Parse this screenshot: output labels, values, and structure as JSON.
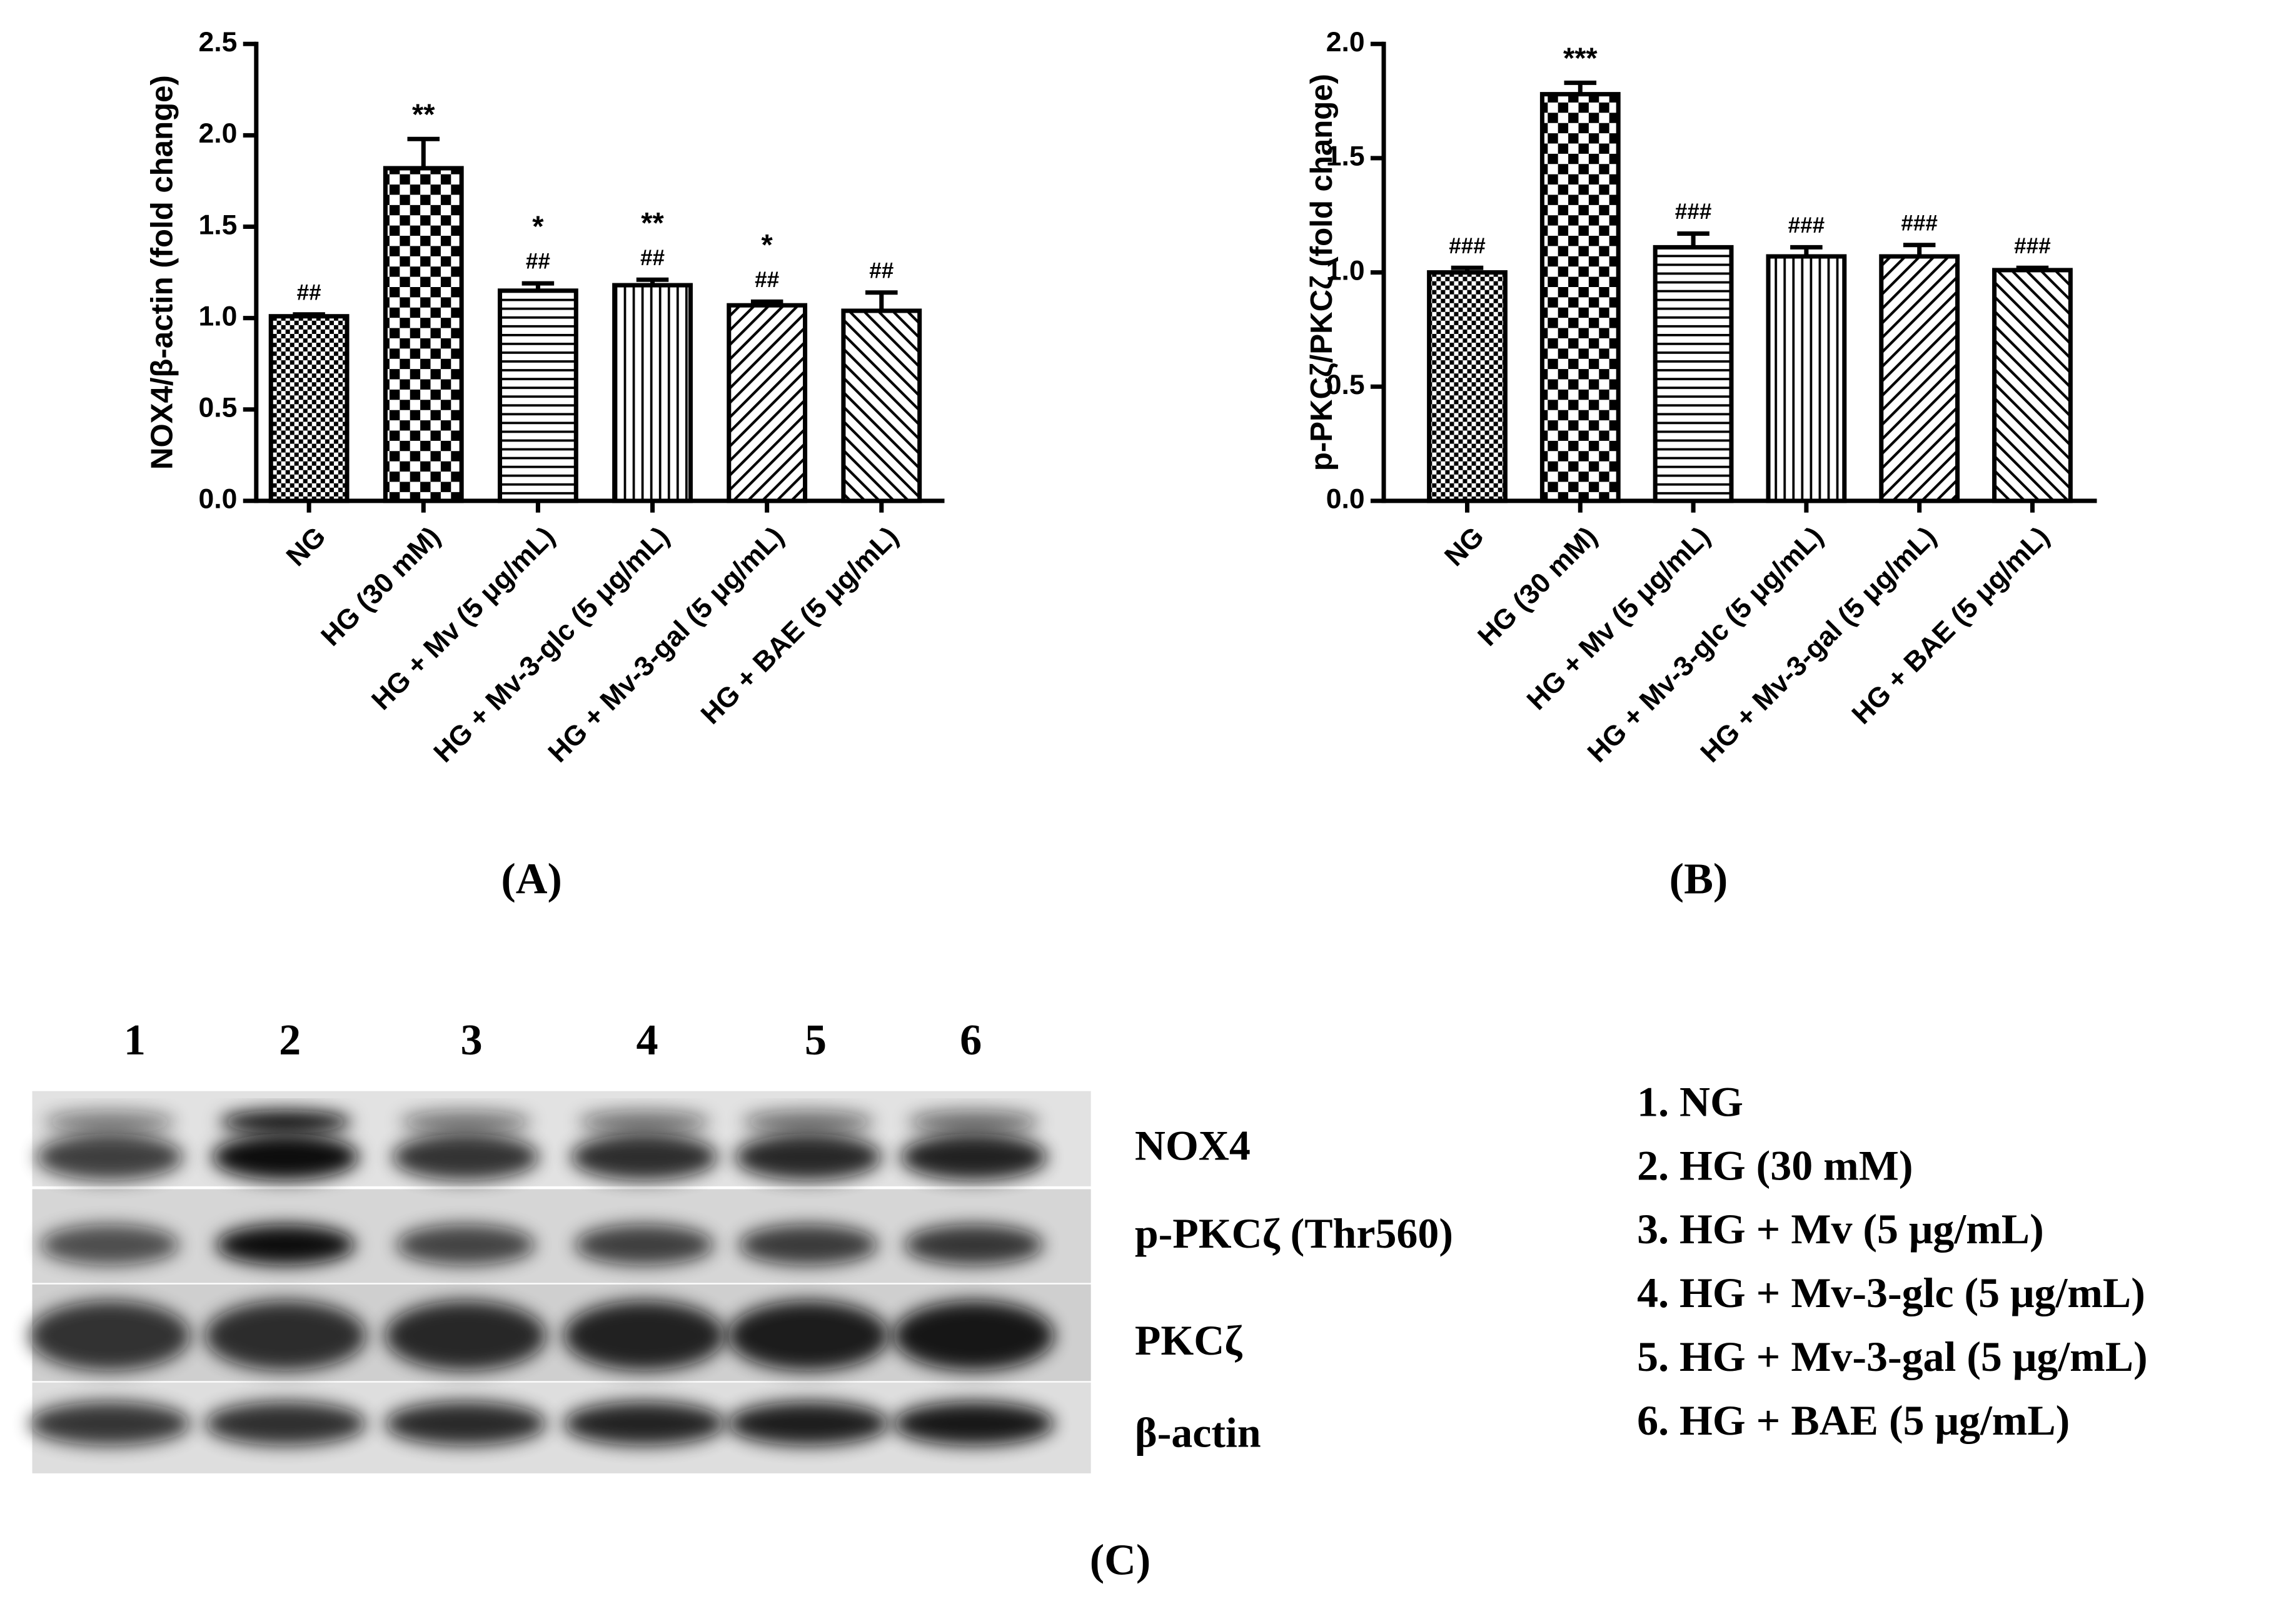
{
  "chart_data": [
    {
      "type": "bar",
      "y_label": "NOX4/β-actin (fold change)",
      "panel_label": "(A)",
      "categories": [
        "NG",
        "HG (30 mM)",
        "HG + Mv (5 μg/mL)",
        "HG + Mv-3-glc (5 μg/mL)",
        "HG + Mv-3-gal (5 μg/mL)",
        "HG + BAE (5 μg/mL)"
      ],
      "values": [
        1.01,
        1.82,
        1.15,
        1.18,
        1.07,
        1.04
      ],
      "errors": [
        0.01,
        0.16,
        0.04,
        0.03,
        0.02,
        0.1
      ],
      "annotations": [
        [
          "##"
        ],
        [
          "**"
        ],
        [
          "*",
          "##"
        ],
        [
          "**",
          "##"
        ],
        [
          "*",
          "##"
        ],
        [
          "##"
        ]
      ],
      "ylim": [
        0,
        2.5
      ],
      "yticks": [
        {
          "value": 0,
          "label": "0.0"
        },
        0.5,
        {
          "value": 1,
          "label": "1.0"
        },
        1.5,
        {
          "value": 2,
          "label": "2.0"
        },
        2.5
      ],
      "color": "#000000"
    },
    {
      "type": "bar",
      "y_label": "p-PKCζ/PKCζ (fold change)",
      "panel_label": "(B)",
      "categories": [
        "NG",
        "HG (30 mM)",
        "HG + Mv (5 μg/mL)",
        "HG + Mv-3-glc (5 μg/mL)",
        "HG + Mv-3-gal (5 μg/mL)",
        "HG + BAE (5 μg/mL)"
      ],
      "values": [
        1.0,
        1.78,
        1.11,
        1.07,
        1.07,
        1.01
      ],
      "errors": [
        0.02,
        0.05,
        0.06,
        0.04,
        0.05,
        0.01
      ],
      "annotations": [
        [
          "###"
        ],
        [
          "***"
        ],
        [
          "###"
        ],
        [
          "###"
        ],
        [
          "###"
        ],
        [
          "###"
        ]
      ],
      "ylim": [
        0,
        2.0
      ],
      "yticks": [
        {
          "value": 0,
          "label": "0.0"
        },
        0.5,
        {
          "value": 1,
          "label": "1.0"
        },
        1.5,
        {
          "value": 2,
          "label": "2.0"
        }
      ],
      "color": "#000000"
    }
  ],
  "blot": {
    "lanes": [
      "1",
      "2",
      "3",
      "4",
      "5",
      "6"
    ],
    "proteins": [
      "NOX4",
      "p-PKCζ (Thr560)",
      "PKCζ",
      "β-actin"
    ],
    "legend": [
      "1. NG",
      "2. HG (30 mM)",
      "3. HG + Mv (5 μg/mL)",
      "4. HG + Mv-3-glc (5 μg/mL)",
      "5. HG + Mv-3-gal (5 μg/mL)",
      "6. HG + BAE (5 μg/mL)"
    ],
    "panel_label": "(C)"
  }
}
